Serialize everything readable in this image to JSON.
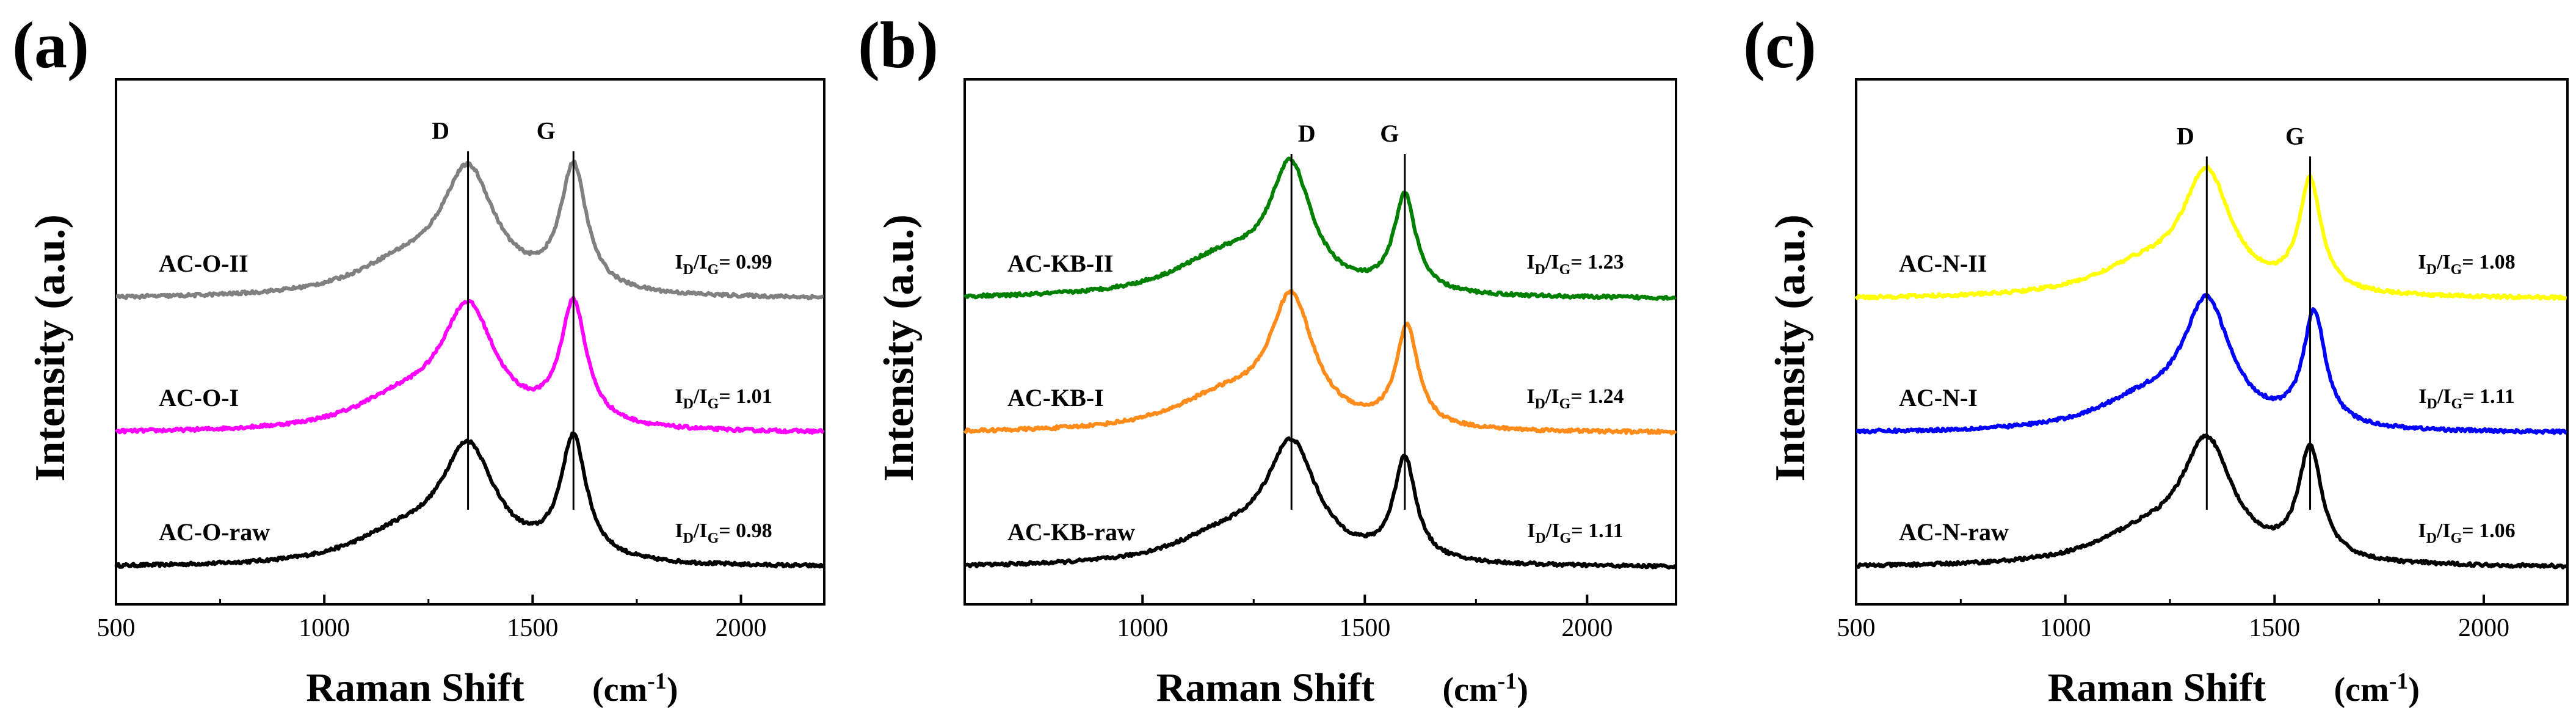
{
  "chart_data": [
    {
      "type": "line",
      "panel_label": "(a)",
      "xlabel": "Raman Shift",
      "xunit_base": "(cm",
      "xunit_exp": "-1",
      "xunit_close": ")",
      "ylabel": "Intensity (a.u.)",
      "xlim": [
        500,
        2200
      ],
      "xticks": [
        500,
        1000,
        1500,
        2000
      ],
      "xtick_labels": [
        "500",
        "1000",
        "1500",
        "2000"
      ],
      "peak_lines": [
        {
          "name": "D",
          "x": 1345,
          "label_offset": -45
        },
        {
          "name": "G",
          "x": 1598,
          "label_offset": -45
        }
      ],
      "series": [
        {
          "name": "AC-O-raw",
          "color": "#000000",
          "baseline": 0.0,
          "d_peak": 1345,
          "g_peak": 1598,
          "d_height": 0.42,
          "g_height": 0.45,
          "d_width": 80,
          "g_width": 38,
          "shoulder": 0.1,
          "ratio_label": {
            "main": "I",
            "sub1": "D",
            "mid": "/I",
            "sub2": "G",
            "value": "= 0.98"
          }
        },
        {
          "name": "AC-O-I",
          "color": "#ff00ff",
          "baseline": 0.5,
          "d_peak": 1345,
          "g_peak": 1598,
          "d_height": 0.44,
          "g_height": 0.45,
          "d_width": 80,
          "g_width": 38,
          "shoulder": 0.1,
          "ratio_label": {
            "main": "I",
            "sub1": "D",
            "mid": "/I",
            "sub2": "G",
            "value": "= 1.01"
          }
        },
        {
          "name": "AC-O-II",
          "color": "#808080",
          "baseline": 1.0,
          "d_peak": 1345,
          "g_peak": 1598,
          "d_height": 0.45,
          "g_height": 0.46,
          "d_width": 80,
          "g_width": 38,
          "shoulder": 0.1,
          "ratio_label": {
            "main": "I",
            "sub1": "D",
            "mid": "/I",
            "sub2": "G",
            "value": "= 0.99"
          }
        }
      ]
    },
    {
      "type": "line",
      "panel_label": "(b)",
      "xlabel": "Raman Shift",
      "xunit_base": "(cm",
      "xunit_exp": "-1",
      "xunit_close": ")",
      "ylabel": "Intensity (a.u.)",
      "xlim": [
        600,
        2200
      ],
      "xticks": [
        1000,
        1500,
        2000
      ],
      "xtick_labels": [
        "1000",
        "1500",
        "2000"
      ],
      "peak_lines": [
        {
          "name": "D",
          "x": 1335,
          "label_offset": 25
        },
        {
          "name": "G",
          "x": 1590,
          "label_offset": -25
        }
      ],
      "series": [
        {
          "name": "AC-KB-raw",
          "color": "#000000",
          "baseline": 0.0,
          "d_peak": 1335,
          "g_peak": 1590,
          "d_height": 0.43,
          "g_height": 0.38,
          "d_width": 70,
          "g_width": 30,
          "shoulder": 0.1,
          "ratio_label": {
            "main": "I",
            "sub1": "D",
            "mid": "/I",
            "sub2": "G",
            "value": "= 1.11"
          }
        },
        {
          "name": "AC-KB-I",
          "color": "#ff8c1a",
          "baseline": 0.5,
          "d_peak": 1335,
          "g_peak": 1595,
          "d_height": 0.47,
          "g_height": 0.37,
          "d_width": 60,
          "g_width": 30,
          "shoulder": 0.12,
          "ratio_label": {
            "main": "I",
            "sub1": "D",
            "mid": "/I",
            "sub2": "G",
            "value": "= 1.24"
          }
        },
        {
          "name": "AC-KB-II",
          "color": "#008000",
          "baseline": 1.0,
          "d_peak": 1333,
          "g_peak": 1590,
          "d_height": 0.45,
          "g_height": 0.36,
          "d_width": 58,
          "g_width": 30,
          "shoulder": 0.14,
          "ratio_label": {
            "main": "I",
            "sub1": "D",
            "mid": "/I",
            "sub2": "G",
            "value": "= 1.23"
          }
        }
      ]
    },
    {
      "type": "line",
      "panel_label": "(c)",
      "xlabel": "Raman Shift",
      "xunit_base": "(cm",
      "xunit_exp": "-1",
      "xunit_close": ")",
      "ylabel": "Intensity (a.u.)",
      "xlim": [
        500,
        2200
      ],
      "xticks": [
        500,
        1000,
        1500,
        2000
      ],
      "xtick_labels": [
        "500",
        "1000",
        "1500",
        "2000"
      ],
      "peak_lines": [
        {
          "name": "D",
          "x": 1338,
          "label_offset": -35
        },
        {
          "name": "G",
          "x": 1585,
          "label_offset": -25
        }
      ],
      "series": [
        {
          "name": "AC-N-raw",
          "color": "#000000",
          "baseline": 0.0,
          "d_peak": 1338,
          "g_peak": 1585,
          "d_height": 0.44,
          "g_height": 0.41,
          "d_width": 75,
          "g_width": 34,
          "shoulder": 0.1,
          "ratio_label": {
            "main": "I",
            "sub1": "D",
            "mid": "/I",
            "sub2": "G",
            "value": "= 1.06"
          }
        },
        {
          "name": "AC-N-I",
          "color": "#0000ff",
          "baseline": 0.5,
          "d_peak": 1338,
          "g_peak": 1595,
          "d_height": 0.46,
          "g_height": 0.42,
          "d_width": 70,
          "g_width": 32,
          "shoulder": 0.1,
          "ratio_label": {
            "main": "I",
            "sub1": "D",
            "mid": "/I",
            "sub2": "G",
            "value": "= 1.11"
          }
        },
        {
          "name": "AC-N-II",
          "color": "#ffff00",
          "baseline": 1.0,
          "d_peak": 1338,
          "g_peak": 1585,
          "d_height": 0.44,
          "g_height": 0.41,
          "d_width": 70,
          "g_width": 32,
          "shoulder": 0.1,
          "ratio_label": {
            "main": "I",
            "sub1": "D",
            "mid": "/I",
            "sub2": "G",
            "value": "= 1.08"
          }
        }
      ]
    }
  ]
}
